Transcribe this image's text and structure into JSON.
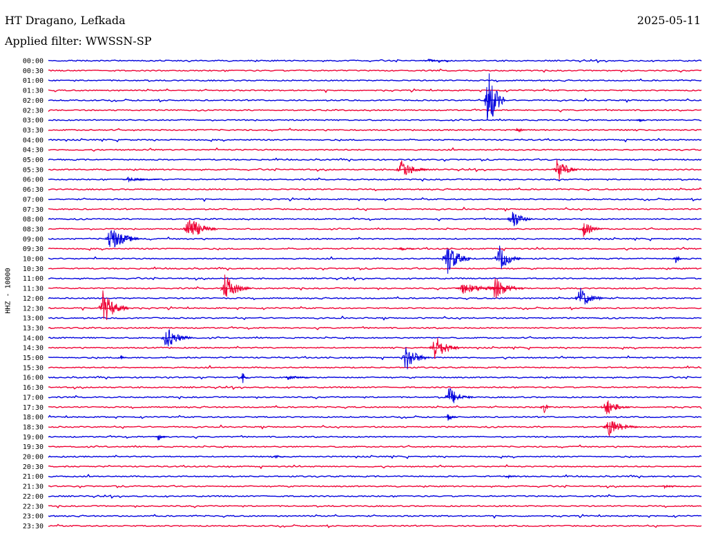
{
  "header": {
    "station": "HT Dragano, Lefkada",
    "date": "2025-05-11",
    "filter": "Applied filter: WWSSN-SP"
  },
  "channel_label": "HHZ - 10000",
  "colors": {
    "trace_a": "#0000dd",
    "trace_b": "#ee0033",
    "text": "#000000",
    "background": "#ffffff"
  },
  "chart_data": {
    "type": "line",
    "plot_kind": "helicorder",
    "rows": [
      "00:00",
      "00:30",
      "01:00",
      "01:30",
      "02:00",
      "02:30",
      "03:00",
      "03:30",
      "04:00",
      "04:30",
      "05:00",
      "05:30",
      "06:00",
      "06:30",
      "07:00",
      "07:30",
      "08:00",
      "08:30",
      "09:00",
      "09:30",
      "10:00",
      "10:30",
      "11:00",
      "11:30",
      "12:00",
      "12:30",
      "13:00",
      "13:30",
      "14:00",
      "14:30",
      "15:00",
      "15:30",
      "16:00",
      "16:30",
      "17:00",
      "17:30",
      "18:00",
      "18:30",
      "19:00",
      "19:30",
      "20:00",
      "20:30",
      "21:00",
      "21:30",
      "22:00",
      "22:30",
      "23:00",
      "23:30"
    ],
    "minutes_per_line": 30,
    "x_range_minutes": [
      0,
      30
    ],
    "row_colors": [
      "blue",
      "red"
    ],
    "events": [
      {
        "row": "00:00",
        "minute": 17.4,
        "amplitude": 3,
        "duration": 1.0
      },
      {
        "row": "02:00",
        "minute": 20.1,
        "amplitude": 55,
        "duration": 0.9
      },
      {
        "row": "03:00",
        "minute": 27.1,
        "amplitude": 6,
        "duration": 0.3
      },
      {
        "row": "03:30",
        "minute": 21.5,
        "amplitude": 5,
        "duration": 0.5
      },
      {
        "row": "05:30",
        "minute": 16.1,
        "amplitude": 16,
        "duration": 1.3
      },
      {
        "row": "05:30",
        "minute": 23.3,
        "amplitude": 20,
        "duration": 1.0
      },
      {
        "row": "06:00",
        "minute": 3.5,
        "amplitude": 4,
        "duration": 1.6
      },
      {
        "row": "08:00",
        "minute": 21.2,
        "amplitude": 18,
        "duration": 1.0
      },
      {
        "row": "08:30",
        "minute": 6.3,
        "amplitude": 22,
        "duration": 1.4
      },
      {
        "row": "08:30",
        "minute": 24.5,
        "amplitude": 12,
        "duration": 1.0
      },
      {
        "row": "09:00",
        "minute": 2.7,
        "amplitude": 20,
        "duration": 1.6
      },
      {
        "row": "09:30",
        "minute": 16.1,
        "amplitude": 4,
        "duration": 0.8
      },
      {
        "row": "10:00",
        "minute": 18.2,
        "amplitude": 28,
        "duration": 1.2
      },
      {
        "row": "10:00",
        "minute": 20.6,
        "amplitude": 22,
        "duration": 1.1
      },
      {
        "row": "10:00",
        "minute": 28.8,
        "amplitude": 9,
        "duration": 0.3
      },
      {
        "row": "11:30",
        "minute": 8.0,
        "amplitude": 22,
        "duration": 1.3
      },
      {
        "row": "11:30",
        "minute": 18.8,
        "amplitude": 8,
        "duration": 2.8
      },
      {
        "row": "11:30",
        "minute": 20.4,
        "amplitude": 18,
        "duration": 1.4
      },
      {
        "row": "12:00",
        "minute": 24.3,
        "amplitude": 18,
        "duration": 1.2
      },
      {
        "row": "12:30",
        "minute": 2.4,
        "amplitude": 26,
        "duration": 1.3
      },
      {
        "row": "14:00",
        "minute": 5.3,
        "amplitude": 18,
        "duration": 1.3
      },
      {
        "row": "14:30",
        "minute": 17.6,
        "amplitude": 22,
        "duration": 1.3
      },
      {
        "row": "15:00",
        "minute": 16.3,
        "amplitude": 22,
        "duration": 1.2
      },
      {
        "row": "15:00",
        "minute": 3.3,
        "amplitude": 5,
        "duration": 0.3
      },
      {
        "row": "16:00",
        "minute": 8.9,
        "amplitude": 10,
        "duration": 0.3
      },
      {
        "row": "16:00",
        "minute": 10.9,
        "amplitude": 4,
        "duration": 1.2
      },
      {
        "row": "17:00",
        "minute": 18.3,
        "amplitude": 16,
        "duration": 1.2
      },
      {
        "row": "17:30",
        "minute": 22.7,
        "amplitude": 12,
        "duration": 0.4
      },
      {
        "row": "17:30",
        "minute": 25.5,
        "amplitude": 14,
        "duration": 1.2
      },
      {
        "row": "18:00",
        "minute": 18.3,
        "amplitude": 7,
        "duration": 0.5
      },
      {
        "row": "18:30",
        "minute": 25.6,
        "amplitude": 14,
        "duration": 1.5
      },
      {
        "row": "19:00",
        "minute": 5.0,
        "amplitude": 6,
        "duration": 0.5
      },
      {
        "row": "20:00",
        "minute": 10.4,
        "amplitude": 3,
        "duration": 0.5
      },
      {
        "row": "21:00",
        "minute": 21.1,
        "amplitude": 3,
        "duration": 0.4
      },
      {
        "row": "21:30",
        "minute": 28.2,
        "amplitude": 3,
        "duration": 0.8
      }
    ]
  }
}
